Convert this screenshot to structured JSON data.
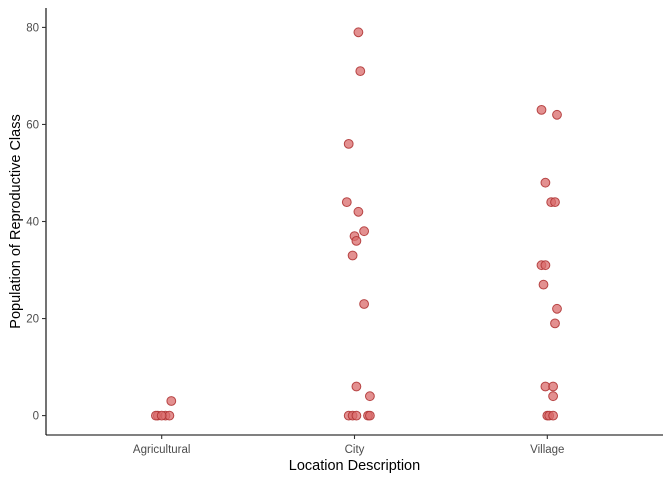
{
  "chart_data": {
    "type": "scatter",
    "title": "",
    "xlabel": "Location Description",
    "ylabel": "Population of Reproductive Class",
    "categories": [
      "Agricultural",
      "City",
      "Village"
    ],
    "ylim": [
      -4,
      84
    ],
    "yticks": [
      "0",
      "20",
      "40",
      "60",
      "80"
    ],
    "grid": false,
    "legend": "none",
    "jitter": "horizontal",
    "colors": {
      "point_fill": "#d96b6b",
      "point_stroke": "#b03535",
      "point_opacity": 0.75,
      "axis": "#000000",
      "tick_label": "#4d4d4d"
    },
    "series": [
      {
        "points": [
          {
            "x": "Agricultural",
            "jitter": 0.05,
            "y": 3
          },
          {
            "x": "Agricultural",
            "jitter": -0.02,
            "y": 0
          },
          {
            "x": "Agricultural",
            "jitter": 0.02,
            "y": 0
          },
          {
            "x": "Agricultural",
            "jitter": 0.04,
            "y": 0
          },
          {
            "x": "Agricultural",
            "jitter": -0.03,
            "y": 0
          },
          {
            "x": "Agricultural",
            "jitter": 0.0,
            "y": 0
          },
          {
            "x": "City",
            "jitter": 0.02,
            "y": 79
          },
          {
            "x": "City",
            "jitter": 0.03,
            "y": 71
          },
          {
            "x": "City",
            "jitter": -0.03,
            "y": 56
          },
          {
            "x": "City",
            "jitter": -0.04,
            "y": 44
          },
          {
            "x": "City",
            "jitter": 0.02,
            "y": 42
          },
          {
            "x": "City",
            "jitter": 0.05,
            "y": 38
          },
          {
            "x": "City",
            "jitter": 0.0,
            "y": 37
          },
          {
            "x": "City",
            "jitter": 0.01,
            "y": 36
          },
          {
            "x": "City",
            "jitter": -0.01,
            "y": 33
          },
          {
            "x": "City",
            "jitter": 0.05,
            "y": 23
          },
          {
            "x": "City",
            "jitter": 0.01,
            "y": 6
          },
          {
            "x": "City",
            "jitter": 0.08,
            "y": 4
          },
          {
            "x": "City",
            "jitter": -0.03,
            "y": 0
          },
          {
            "x": "City",
            "jitter": -0.01,
            "y": 0
          },
          {
            "x": "City",
            "jitter": 0.01,
            "y": 0
          },
          {
            "x": "City",
            "jitter": 0.07,
            "y": 0
          },
          {
            "x": "City",
            "jitter": 0.08,
            "y": 0
          },
          {
            "x": "Village",
            "jitter": -0.03,
            "y": 63
          },
          {
            "x": "Village",
            "jitter": 0.05,
            "y": 62
          },
          {
            "x": "Village",
            "jitter": -0.01,
            "y": 48
          },
          {
            "x": "Village",
            "jitter": 0.02,
            "y": 44
          },
          {
            "x": "Village",
            "jitter": 0.04,
            "y": 44
          },
          {
            "x": "Village",
            "jitter": -0.03,
            "y": 31
          },
          {
            "x": "Village",
            "jitter": -0.01,
            "y": 31
          },
          {
            "x": "Village",
            "jitter": -0.02,
            "y": 27
          },
          {
            "x": "Village",
            "jitter": 0.05,
            "y": 22
          },
          {
            "x": "Village",
            "jitter": 0.04,
            "y": 19
          },
          {
            "x": "Village",
            "jitter": -0.01,
            "y": 6
          },
          {
            "x": "Village",
            "jitter": 0.03,
            "y": 6
          },
          {
            "x": "Village",
            "jitter": 0.03,
            "y": 4
          },
          {
            "x": "Village",
            "jitter": 0.0,
            "y": 0
          },
          {
            "x": "Village",
            "jitter": 0.01,
            "y": 0
          },
          {
            "x": "Village",
            "jitter": 0.03,
            "y": 0
          }
        ]
      }
    ]
  }
}
